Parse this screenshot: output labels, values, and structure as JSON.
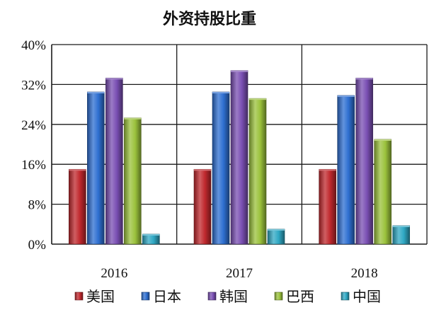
{
  "chart_data": {
    "type": "bar",
    "title": "外资持股比重",
    "xlabel": "",
    "ylabel": "",
    "categories": [
      "2016",
      "2017",
      "2018"
    ],
    "series": [
      {
        "name": "美国",
        "values": [
          15,
          15,
          15
        ],
        "color": "#c0282d"
      },
      {
        "name": "日本",
        "values": [
          30.5,
          30.5,
          29.8
        ],
        "color": "#2e6fd1"
      },
      {
        "name": "韩国",
        "values": [
          33.3,
          34.8,
          33.3
        ],
        "color": "#7a4fb3"
      },
      {
        "name": "巴西",
        "values": [
          25.3,
          29.2,
          21
        ],
        "color": "#9bc23c"
      },
      {
        "name": "中国",
        "values": [
          2,
          3,
          3.7
        ],
        "color": "#2fa8c4"
      }
    ],
    "ylim": [
      0,
      40
    ],
    "yticks": [
      0,
      8,
      16,
      24,
      32,
      40
    ],
    "ytick_labels": [
      "0%",
      "8%",
      "16%",
      "24%",
      "32%",
      "40%"
    ],
    "grid": true,
    "legend_position": "bottom"
  }
}
